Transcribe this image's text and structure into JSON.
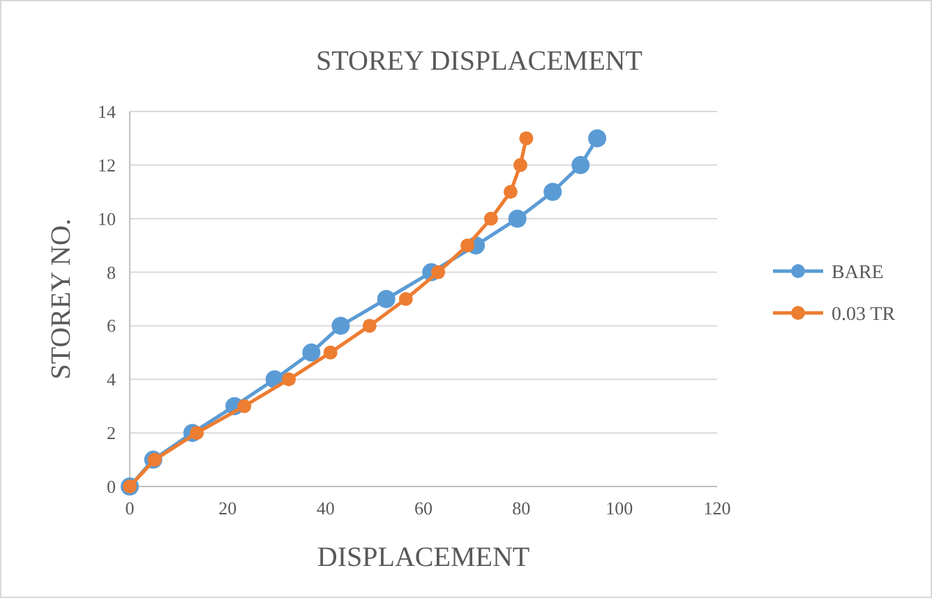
{
  "chart_data": {
    "type": "line",
    "title": "STOREY DISPLACEMENT",
    "xlabel": "DISPLACEMENT",
    "ylabel": "STOREY NO.",
    "xlim": [
      0,
      120
    ],
    "xticks": [
      0,
      20,
      40,
      60,
      80,
      100,
      120
    ],
    "ylim": [
      0,
      14
    ],
    "yticks": [
      0,
      2,
      4,
      6,
      8,
      10,
      12,
      14
    ],
    "grid": "y",
    "legend": "right",
    "marker": "circle",
    "line_style": "solid",
    "series": [
      {
        "name": "BARE",
        "color": "#5b9bd5",
        "x": [
          0,
          4.8,
          12.8,
          21.4,
          29.6,
          37.1,
          43.1,
          52.4,
          61.6,
          70.7,
          79.2,
          86.4,
          92.1,
          95.5
        ],
        "values": [
          0,
          1,
          2,
          3,
          4,
          5,
          6,
          7,
          8,
          9,
          10,
          11,
          12,
          13
        ]
      },
      {
        "name": "0.03 TR",
        "color": "#ed7d31",
        "x": [
          0,
          5.1,
          13.7,
          23.4,
          32.5,
          41,
          49,
          56.4,
          63,
          69,
          73.8,
          77.8,
          79.8,
          81
        ],
        "values": [
          0,
          1,
          2,
          3,
          4,
          5,
          6,
          7,
          8,
          9,
          10,
          11,
          12,
          13
        ]
      }
    ]
  }
}
